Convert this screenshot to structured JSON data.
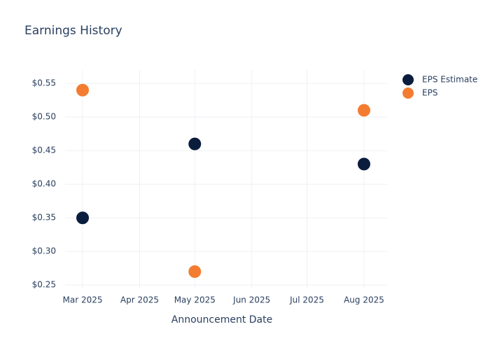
{
  "chart_data": {
    "type": "scatter",
    "title": "Earnings History",
    "x_label": "Announcement Date",
    "x": [
      "2025-03",
      "2025-05",
      "2025-08"
    ],
    "series": [
      {
        "name": "EPS Estimate",
        "color": "#0b1d3d",
        "values": [
          0.35,
          0.46,
          0.43
        ]
      },
      {
        "name": "EPS",
        "color": "#f47c30",
        "values": [
          0.54,
          0.27,
          0.51
        ]
      }
    ],
    "xlim": [
      "2025-03",
      "2025-08"
    ],
    "xticks": [
      {
        "value": "2025-03",
        "label": "Mar 2025"
      },
      {
        "value": "2025-04",
        "label": "Apr 2025"
      },
      {
        "value": "2025-05",
        "label": "May 2025"
      },
      {
        "value": "2025-06",
        "label": "Jun 2025"
      },
      {
        "value": "2025-07",
        "label": "Jul 2025"
      },
      {
        "value": "2025-08",
        "label": "Aug 2025"
      }
    ],
    "ylim": [
      0.245,
      0.57
    ],
    "yticks": [
      {
        "value": 0.25,
        "label": "$0.25"
      },
      {
        "value": 0.3,
        "label": "$0.30"
      },
      {
        "value": 0.35,
        "label": "$0.35"
      },
      {
        "value": 0.4,
        "label": "$0.40"
      },
      {
        "value": 0.45,
        "label": "$0.45"
      },
      {
        "value": 0.5,
        "label": "$0.50"
      },
      {
        "value": 0.55,
        "label": "$0.55"
      }
    ],
    "grid": true,
    "legend": "top-right"
  }
}
